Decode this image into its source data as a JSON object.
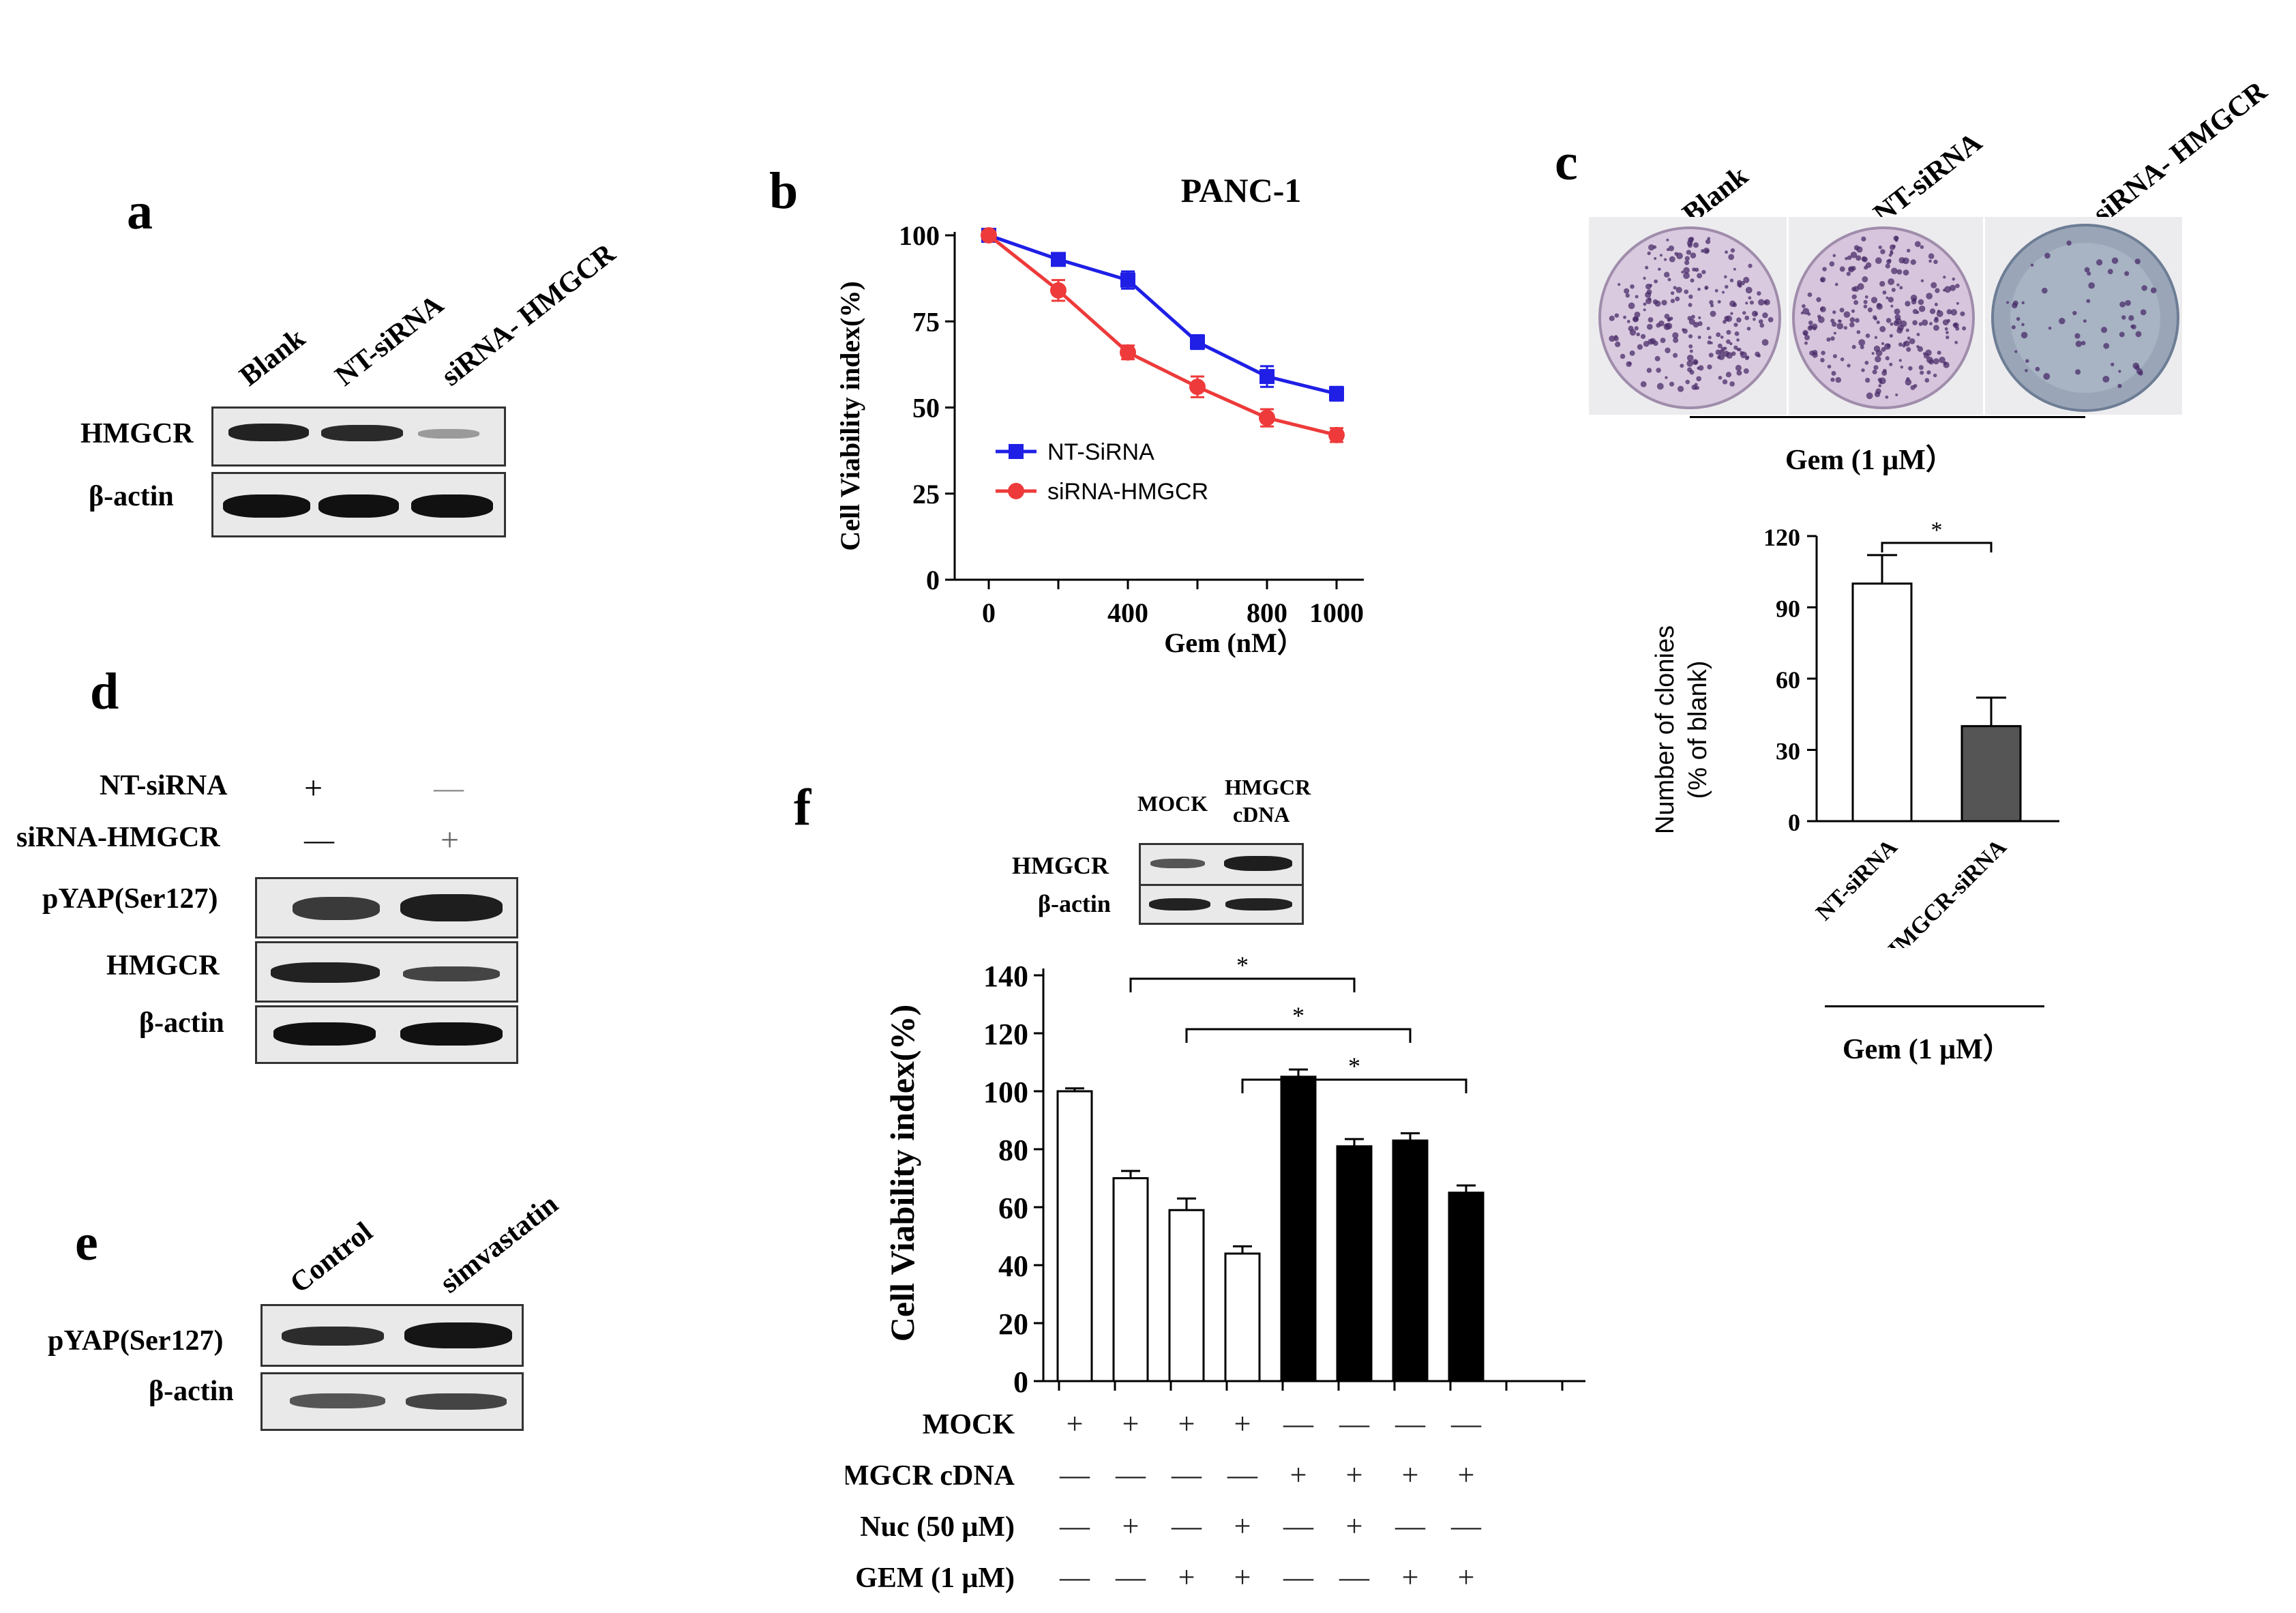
{
  "panel_a": {
    "letter": "a",
    "lanes": [
      "Blank",
      "NT-siRNA",
      "siRNA- HMGCR"
    ],
    "rows": [
      "HMGCR",
      "β-actin"
    ]
  },
  "panel_b": {
    "letter": "b"
  },
  "panel_c": {
    "letter": "c",
    "plate_labels": [
      "Blank",
      "NT-siRNA",
      "siRNA- HMGCR"
    ],
    "treatment": "Gem (1 μM）",
    "bar_treatment": "Gem (1 μM）"
  },
  "panel_d": {
    "letter": "d",
    "condition_rows": [
      {
        "label": "NT-siRNA",
        "marks": [
          "+",
          "—"
        ]
      },
      {
        "label": "siRNA-HMGCR",
        "marks": [
          "—",
          "+"
        ]
      }
    ],
    "blot_rows": [
      "pYAP(Ser127)",
      "HMGCR",
      "β-actin"
    ]
  },
  "panel_e": {
    "letter": "e",
    "lanes": [
      "Control",
      "simvastatin"
    ],
    "rows": [
      "pYAP(Ser127)",
      "β-actin"
    ]
  },
  "panel_f": {
    "letter": "f",
    "inset_lanes": [
      "MOCK",
      "HMGCR",
      "cDNA"
    ],
    "inset_rows": [
      "HMGCR",
      "β-actin"
    ],
    "condition_rows": [
      {
        "label": "MOCK",
        "marks": [
          "+",
          "+",
          "+",
          "+",
          "—",
          "—",
          "—",
          "—"
        ]
      },
      {
        "label": "HMGCR cDNA",
        "marks": [
          "—",
          "—",
          "—",
          "—",
          "+",
          "+",
          "+",
          "+"
        ]
      },
      {
        "label": "Nuc (50 μM)",
        "marks": [
          "—",
          "+",
          "—",
          "+",
          "—",
          "+",
          "—",
          "—"
        ]
      },
      {
        "label": "GEM (1 μM)",
        "marks": [
          "—",
          "—",
          "+",
          "+",
          "—",
          "—",
          "+",
          "+"
        ]
      }
    ]
  },
  "chart_data": [
    {
      "id": "b",
      "type": "line",
      "title": "PANC-1",
      "xlabel": "Gem (nM）",
      "ylabel": "Cell Viability index(%)",
      "x": [
        0,
        200,
        400,
        600,
        800,
        1000
      ],
      "xticks": [
        "0",
        "400",
        "800",
        "1000"
      ],
      "yticks": [
        "0",
        "25",
        "50",
        "75",
        "100"
      ],
      "xlim": [
        0,
        1000
      ],
      "ylim": [
        0,
        100
      ],
      "series": [
        {
          "name": "NT-SiRNA",
          "color": "#1f1fe6",
          "values": [
            100,
            93,
            87,
            69,
            59,
            54
          ],
          "err": [
            0,
            1.5,
            2.5,
            2,
            3,
            2
          ]
        },
        {
          "name": "siRNA-HMGCR",
          "color": "#ee3a3a",
          "values": [
            100,
            84,
            66,
            56,
            47,
            42
          ],
          "err": [
            0,
            3,
            2,
            3,
            2.5,
            2
          ]
        }
      ],
      "legend": "center-left"
    },
    {
      "id": "c",
      "type": "bar",
      "categories": [
        "NT-siRNA",
        "HMGCR-siRNA"
      ],
      "values": [
        100,
        40
      ],
      "err": [
        12,
        12
      ],
      "colors": [
        "#ffffff",
        "#555555"
      ],
      "ylabel": "Number of clonies\n(% of blank)",
      "ylabel_lines": [
        "Number of clonies",
        "(% of blank)"
      ],
      "yticks": [
        "0",
        "30",
        "60",
        "90",
        "120"
      ],
      "ylim": [
        0,
        120
      ],
      "significance": [
        {
          "pair": [
            0,
            1
          ],
          "label": "*"
        }
      ]
    },
    {
      "id": "f",
      "type": "bar",
      "ylabel": "Cell Viability index(%)",
      "values": [
        100,
        70,
        59,
        44,
        105,
        81,
        83,
        65
      ],
      "err": [
        1,
        2.5,
        4,
        2.5,
        2.5,
        2.5,
        2.5,
        2.5
      ],
      "colors": [
        "#ffffff",
        "#ffffff",
        "#ffffff",
        "#ffffff",
        "#000000",
        "#000000",
        "#000000",
        "#000000"
      ],
      "yticks": [
        "0",
        "20",
        "40",
        "60",
        "80",
        "100",
        "120",
        "140"
      ],
      "ylim": [
        0,
        140
      ],
      "significance": [
        {
          "pair": [
            1,
            5
          ],
          "label": "*"
        },
        {
          "pair": [
            2,
            6
          ],
          "label": "*"
        },
        {
          "pair": [
            3,
            7
          ],
          "label": "*"
        }
      ]
    }
  ]
}
